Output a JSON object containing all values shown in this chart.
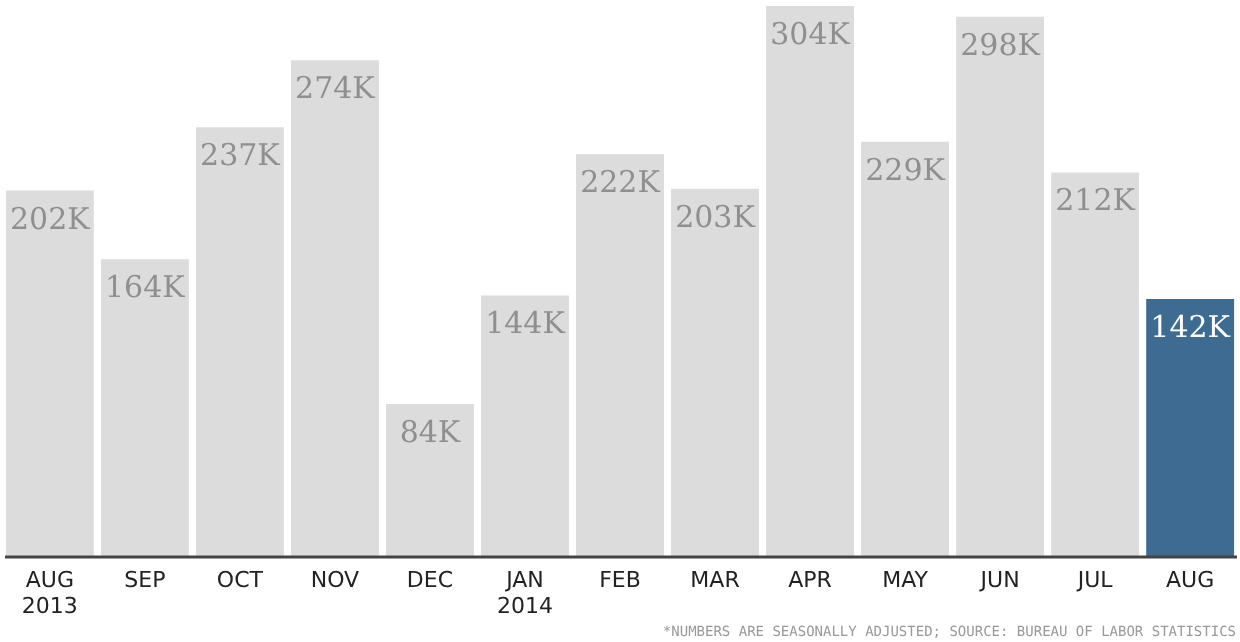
{
  "chart_data": {
    "type": "bar",
    "categories": [
      "AUG 2013",
      "SEP",
      "OCT",
      "NOV",
      "DEC",
      "JAN 2014",
      "FEB",
      "MAR",
      "APR",
      "MAY",
      "JUN",
      "JUL",
      "AUG"
    ],
    "values": [
      202,
      164,
      237,
      274,
      84,
      144,
      222,
      203,
      304,
      229,
      298,
      212,
      142
    ],
    "value_labels": [
      "202K",
      "164K",
      "237K",
      "274K",
      "84K",
      "144K",
      "222K",
      "203K",
      "304K",
      "229K",
      "298K",
      "212K",
      "142K"
    ],
    "colors": [
      "#dcdcdc",
      "#dcdcdc",
      "#dcdcdc",
      "#dcdcdc",
      "#dcdcdc",
      "#dcdcdc",
      "#dcdcdc",
      "#dcdcdc",
      "#dcdcdc",
      "#dcdcdc",
      "#dcdcdc",
      "#dcdcdc",
      "#3e6b91"
    ],
    "annotations": [
      "*NUMBERS ARE SEASONALLY ADJUSTED; SOURCE: BUREAU OF LABOR STATISTICS"
    ]
  }
}
